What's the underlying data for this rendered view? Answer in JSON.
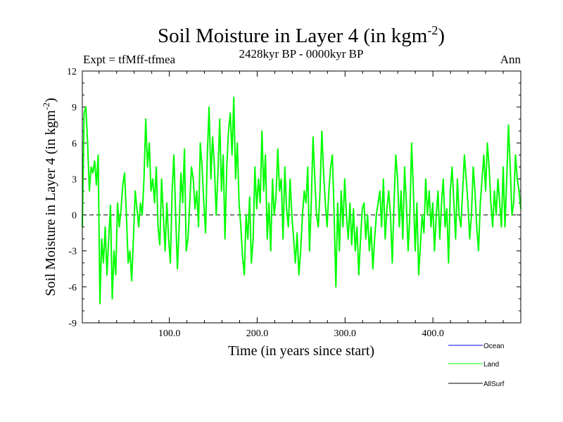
{
  "chart_data": {
    "type": "line",
    "title": "Soil Moisture in Layer 4 (in kgm",
    "title_sup": "-2",
    "title_end": ")",
    "subtitle_left": "Expt = tfMff-tfmea",
    "subtitle_center": "2428kyr BP - 0000kyr BP",
    "subtitle_right": "Ann",
    "xlabel": "Time (in years since start)",
    "ylabel": "Soil Moisture in Layer 4 (in kgm",
    "ylabel_sup": "-2",
    "ylabel_end": ")",
    "xlim": [
      1,
      500
    ],
    "ylim": [
      -9,
      12
    ],
    "xticks": [
      100,
      200,
      300,
      400
    ],
    "xtick_labels": [
      "100.0",
      "200.0",
      "300.0",
      "400.0"
    ],
    "yticks": [
      -9,
      -6,
      -3,
      0,
      3,
      6,
      9,
      12
    ],
    "ytick_labels": [
      "-9",
      "-6",
      "-3",
      "0",
      "3",
      "6",
      "9",
      "12"
    ],
    "zero_line": 0,
    "series": [
      {
        "name": "Ocean",
        "color": "#0000ff",
        "values": []
      },
      {
        "name": "Land",
        "color": "#00ff00",
        "values": [
          -1.0,
          8.5,
          9.0,
          6.0,
          2.0,
          4.0,
          3.5,
          4.5,
          2.5,
          5.0,
          -7.4,
          -2.0,
          -4.0,
          -1.0,
          -5.0,
          -2.0,
          0.8,
          -7.0,
          -3.0,
          -5.0,
          1.0,
          -1.0,
          0.5,
          2.5,
          3.5,
          0.0,
          -4.0,
          -3.0,
          -5.5,
          -2.0,
          2.0,
          0.5,
          -1.0,
          1.0,
          0.0,
          3.0,
          8.0,
          4.0,
          6.0,
          2.0,
          3.0,
          1.0,
          4.0,
          -1.0,
          -2.5,
          3.0,
          0.0,
          -3.0,
          1.0,
          -2.0,
          -4.0,
          2.0,
          5.0,
          0.0,
          -4.5,
          -1.0,
          3.5,
          1.0,
          5.5,
          -3.0,
          -2.0,
          1.0,
          4.0,
          3.0,
          0.5,
          2.0,
          -1.0,
          6.0,
          4.0,
          1.0,
          -1.5,
          5.0,
          9.0,
          3.0,
          6.5,
          4.0,
          0.0,
          3.5,
          8.0,
          2.0,
          5.0,
          -2.0,
          4.0,
          7.0,
          8.5,
          5.0,
          9.8,
          3.0,
          6.0,
          1.0,
          -1.0,
          -3.5,
          -5.0,
          0.0,
          -2.0,
          1.5,
          -4.0,
          -2.0,
          4.0,
          0.5,
          3.0,
          1.0,
          7.0,
          2.0,
          5.0,
          -2.0,
          1.0,
          -3.0,
          3.0,
          0.0,
          1.5,
          5.5,
          2.0,
          3.0,
          -2.0,
          4.0,
          0.5,
          -1.0,
          3.0,
          0.0,
          -2.0,
          -4.0,
          -1.5,
          -5.0,
          -3.0,
          0.0,
          2.0,
          1.0,
          4.0,
          -3.0,
          1.0,
          6.5,
          3.0,
          0.0,
          -1.0,
          2.0,
          7.0,
          3.5,
          1.0,
          -1.0,
          2.0,
          4.0,
          5.0,
          0.0,
          -6.0,
          1.0,
          -3.0,
          2.0,
          -1.0,
          3.0,
          0.0,
          -2.0,
          1.0,
          -2.5,
          0.5,
          -3.0,
          -1.0,
          -5.0,
          -2.0,
          0.5,
          1.0,
          -2.0,
          0.0,
          -3.0,
          -1.0,
          -4.5,
          -2.0,
          0.0,
          1.0,
          2.0,
          -1.0,
          3.0,
          -2.0,
          0.5,
          2.0,
          0.0,
          -4.0,
          1.0,
          5.0,
          3.0,
          -1.0,
          2.0,
          -2.0,
          4.0,
          1.0,
          -3.0,
          0.0,
          6.0,
          2.0,
          -3.0,
          1.0,
          -5.0,
          -2.5,
          0.0,
          -1.5,
          3.0,
          0.0,
          2.0,
          -1.0,
          1.0,
          -3.0,
          0.0,
          2.0,
          -2.0,
          1.0,
          3.0,
          -1.0,
          0.5,
          -4.0,
          2.0,
          4.0,
          1.0,
          -2.0,
          3.0,
          0.0,
          -1.0,
          2.0,
          5.0,
          3.0,
          1.0,
          -2.0,
          0.0,
          4.0,
          2.0,
          -1.0,
          -3.0,
          1.0,
          3.0,
          5.0,
          2.0,
          6.0,
          4.0,
          1.0,
          -1.0,
          2.0,
          0.0,
          3.0,
          1.0,
          -1.0,
          4.0,
          -1.0,
          3.0,
          7.5,
          4.0,
          0.0,
          1.0,
          5.0,
          3.0,
          2.0,
          0.5
        ]
      },
      {
        "name": "AllSurf",
        "color": "#000000",
        "values": []
      }
    ]
  }
}
